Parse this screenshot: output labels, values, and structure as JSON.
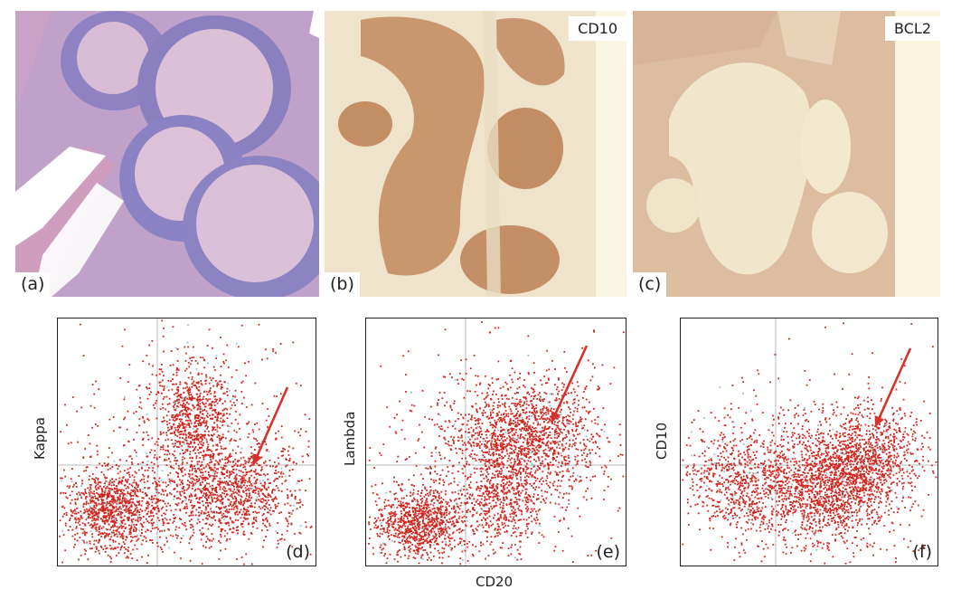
{
  "panels": {
    "a": {
      "label": "(a)",
      "stain": ""
    },
    "b": {
      "label": "(b)",
      "stain": "CD10"
    },
    "c": {
      "label": "(c)",
      "stain": "BCL2"
    }
  },
  "plots": {
    "d": {
      "label": "(d)",
      "ylabel": "Kappa",
      "xlabel": ""
    },
    "e": {
      "label": "(e)",
      "ylabel": "Lambda",
      "xlabel": "CD20"
    },
    "f": {
      "label": "(f)",
      "ylabel": "CD10",
      "xlabel": ""
    }
  },
  "colors": {
    "he_bg": "#c9a9cc",
    "he_follicle": "#d6b6d4",
    "he_mantle": "#8f86c4",
    "ihc_bg": "#efe1c8",
    "cd10_follicle": "#c7956b",
    "bcl2_tissue": "#d9b9a0",
    "dot": "#d0261e",
    "arrow": "#d4322a"
  },
  "icons": [
    "arrow-icon"
  ]
}
